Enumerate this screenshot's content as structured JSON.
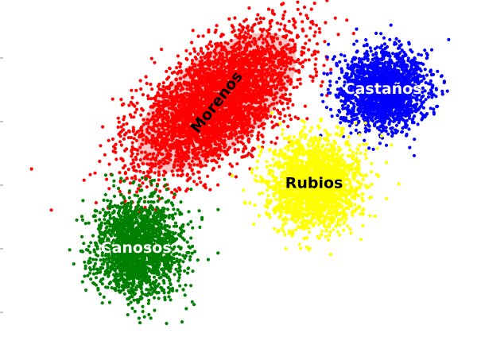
{
  "chart_data": {
    "type": "scatter",
    "title": "",
    "xlabel": "",
    "ylabel": "",
    "grid": false,
    "legend": "none",
    "x_axis_visible": false,
    "y_axis_visible": false,
    "xlim": [
      0,
      100
    ],
    "ylim": [
      0,
      100
    ],
    "series": [
      {
        "name": "Morenos",
        "color": "#ff0000",
        "approx_points": 4000,
        "center": [
          45,
          70
        ],
        "spread": [
          10,
          7
        ],
        "orientation_deg": 39,
        "label_rotation_deg": -52,
        "label_color": "#000000",
        "confidence_ellipse": true
      },
      {
        "name": "Castaños",
        "color": "#0000ff",
        "approx_points": 2000,
        "center": [
          80,
          74
        ],
        "spread": [
          4.4,
          5.7
        ],
        "orientation_deg": 0,
        "label_rotation_deg": 0,
        "label_color": "#ffffff",
        "confidence_ellipse": false
      },
      {
        "name": "Rubios",
        "color": "#ffff00",
        "approx_points": 2000,
        "center": [
          65.5,
          45.5
        ],
        "spread": [
          4.9,
          6.6
        ],
        "orientation_deg": 0,
        "label_rotation_deg": 0,
        "label_color": "#000000",
        "confidence_ellipse": false
      },
      {
        "name": "Canosos",
        "color": "#008000",
        "approx_points": 2000,
        "center": [
          28,
          26
        ],
        "spread": [
          4.6,
          7.5
        ],
        "orientation_deg": 0,
        "label_rotation_deg": 0,
        "label_color": "#ffffff",
        "confidence_ellipse": false
      }
    ]
  }
}
